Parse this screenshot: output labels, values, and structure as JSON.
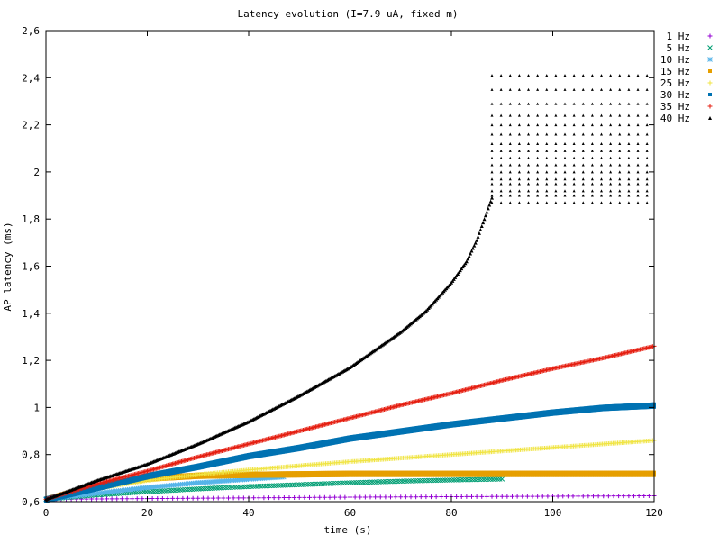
{
  "chart_data": {
    "type": "scatter",
    "title": "Latency evolution (I=7.9 uA, fixed m)",
    "xlabel": "time (s)",
    "ylabel": "AP latency (ms)",
    "xlim": [
      0,
      120
    ],
    "ylim": [
      0.6,
      2.6
    ],
    "x_ticks": [
      0,
      20,
      40,
      60,
      80,
      100,
      120
    ],
    "y_ticks": [
      0.6,
      0.8,
      1.0,
      1.2,
      1.4,
      1.6,
      1.8,
      2.0,
      2.2,
      2.4,
      2.6
    ],
    "y_tick_labels": [
      "0,6",
      "0,8",
      "1",
      "1,2",
      "1,4",
      "1,6",
      "1,8",
      "2",
      "2,2",
      "2,4",
      "2,6"
    ],
    "grid": false,
    "legend_position": "top-right",
    "series": [
      {
        "name": "1 Hz",
        "color": "#9400d3",
        "marker": "plus",
        "step": 1.0,
        "x": [
          0,
          20,
          40,
          60,
          80,
          100,
          120
        ],
        "y": [
          0.61,
          0.613,
          0.616,
          0.619,
          0.621,
          0.623,
          0.625
        ]
      },
      {
        "name": "5 Hz",
        "color": "#009e73",
        "marker": "cross",
        "step": 0.45,
        "x": [
          0,
          10,
          20,
          30,
          40,
          50,
          60,
          70,
          80,
          90
        ],
        "y": [
          0.61,
          0.628,
          0.642,
          0.654,
          0.664,
          0.672,
          0.68,
          0.687,
          0.692,
          0.696
        ]
      },
      {
        "name": "10 Hz",
        "color": "#56b4e9",
        "marker": "star",
        "step": 0.35,
        "x": [
          0,
          10,
          20,
          30,
          40,
          47
        ],
        "y": [
          0.61,
          0.635,
          0.66,
          0.68,
          0.695,
          0.705
        ]
      },
      {
        "name": "15 Hz",
        "color": "#e69f00",
        "marker": "square",
        "step": 0.3,
        "x": [
          0,
          5,
          10,
          15,
          20,
          30,
          40,
          50,
          60,
          80,
          100,
          120
        ],
        "y": [
          0.61,
          0.64,
          0.665,
          0.685,
          0.7,
          0.712,
          0.716,
          0.718,
          0.72,
          0.72,
          0.72,
          0.72
        ]
      },
      {
        "name": "25 Hz",
        "color": "#f0e442",
        "marker": "plus",
        "step": 0.3,
        "x": [
          0,
          10,
          20,
          30,
          40,
          60,
          80,
          100,
          120
        ],
        "y": [
          0.61,
          0.655,
          0.69,
          0.715,
          0.735,
          0.77,
          0.8,
          0.83,
          0.86
        ]
      },
      {
        "name": "30 Hz",
        "color": "#0072b2",
        "marker": "square",
        "step": 0.25,
        "x": [
          0,
          10,
          20,
          30,
          40,
          50,
          60,
          70,
          80,
          90,
          100,
          110,
          120
        ],
        "y": [
          0.61,
          0.66,
          0.71,
          0.75,
          0.795,
          0.83,
          0.87,
          0.9,
          0.93,
          0.955,
          0.98,
          1.0,
          1.01
        ]
      },
      {
        "name": "35 Hz",
        "color": "#e51e10",
        "marker": "plus",
        "step": 0.25,
        "x": [
          0,
          10,
          20,
          30,
          40,
          50,
          60,
          70,
          80,
          90,
          100,
          110,
          120
        ],
        "y": [
          0.61,
          0.675,
          0.73,
          0.79,
          0.845,
          0.9,
          0.955,
          1.01,
          1.06,
          1.115,
          1.165,
          1.21,
          1.26
        ]
      },
      {
        "name": "40 Hz",
        "color": "#000000",
        "marker": "triangle",
        "step": 0.25,
        "x": [
          0,
          10,
          20,
          30,
          40,
          50,
          60,
          70,
          75,
          80,
          83,
          85,
          86,
          87,
          88
        ],
        "y": [
          0.61,
          0.69,
          0.76,
          0.845,
          0.94,
          1.05,
          1.17,
          1.32,
          1.41,
          1.53,
          1.62,
          1.71,
          1.77,
          1.83,
          1.89
        ]
      },
      {
        "name": "",
        "color": "#000000",
        "marker": "triangle",
        "step": 1.8,
        "x": [
          88,
          120
        ],
        "y": [
          2.41,
          2.41
        ],
        "band_levels": [
          1.87,
          1.9,
          1.92,
          1.95,
          1.97,
          2.0,
          2.03,
          2.06,
          2.09,
          2.12,
          2.16,
          2.2,
          2.24,
          2.29,
          2.35,
          2.41
        ]
      }
    ]
  }
}
